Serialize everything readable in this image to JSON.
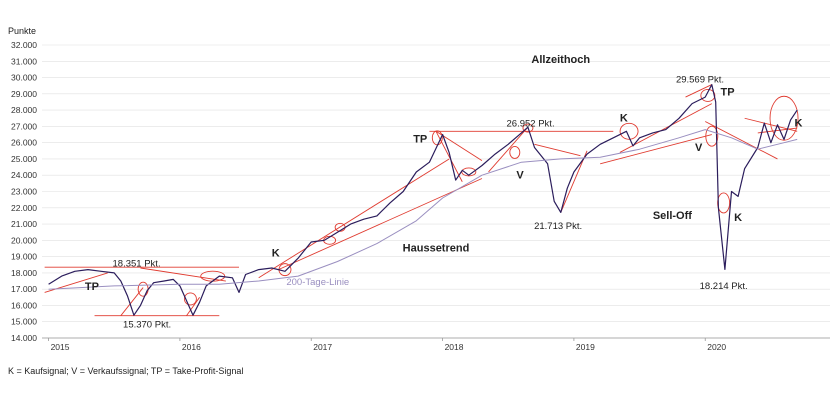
{
  "chart_data": {
    "type": "line",
    "ylabel": "Punkte",
    "ylim": [
      14000,
      32000
    ],
    "y_ticks": [
      14000,
      15000,
      16000,
      17000,
      18000,
      19000,
      20000,
      21000,
      22000,
      23000,
      24000,
      25000,
      26000,
      27000,
      28000,
      29000,
      30000,
      31000,
      32000
    ],
    "y_tick_labels": [
      "14.000",
      "15.000",
      "16.000",
      "17.000",
      "18.000",
      "19.000",
      "20.000",
      "21.000",
      "22.000",
      "23.000",
      "24.000",
      "25.000",
      "26.000",
      "27.000",
      "28.000",
      "29.000",
      "30.000",
      "31.000",
      "32.000"
    ],
    "x_range": [
      2014.95,
      2020.95
    ],
    "x_ticks": [
      2015,
      2016,
      2017,
      2018,
      2019,
      2020
    ],
    "x_tick_labels": [
      "2015",
      "2016",
      "2017",
      "2018",
      "2019",
      "2020"
    ],
    "grid": true,
    "series": [
      {
        "color": "#2b1d5c",
        "x": [
          2015.0,
          2015.1,
          2015.2,
          2015.3,
          2015.4,
          2015.5,
          2015.55,
          2015.6,
          2015.65,
          2015.7,
          2015.75,
          2015.8,
          2015.88,
          2015.95,
          2016.0,
          2016.05,
          2016.1,
          2016.15,
          2016.2,
          2016.3,
          2016.4,
          2016.45,
          2016.5,
          2016.6,
          2016.7,
          2016.8,
          2016.9,
          2017.0,
          2017.1,
          2017.2,
          2017.3,
          2017.4,
          2017.5,
          2017.6,
          2017.7,
          2017.8,
          2017.9,
          2018.0,
          2018.05,
          2018.1,
          2018.15,
          2018.2,
          2018.3,
          2018.4,
          2018.5,
          2018.6,
          2018.65,
          2018.7,
          2018.8,
          2018.85,
          2018.9,
          2018.95,
          2019.0,
          2019.1,
          2019.2,
          2019.3,
          2019.4,
          2019.45,
          2019.5,
          2019.6,
          2019.7,
          2019.8,
          2019.9,
          2020.0,
          2020.05,
          2020.08,
          2020.1,
          2020.15,
          2020.2,
          2020.25,
          2020.3,
          2020.4,
          2020.45,
          2020.5,
          2020.55,
          2020.6,
          2020.65,
          2020.7
        ],
        "y": [
          17300,
          17800,
          18100,
          18200,
          18100,
          18000,
          17500,
          16600,
          15400,
          16000,
          16900,
          17400,
          17500,
          17600,
          17200,
          16300,
          15400,
          16200,
          17200,
          17800,
          17700,
          16800,
          17900,
          18200,
          18300,
          18100,
          18900,
          19900,
          20000,
          20500,
          21000,
          21300,
          21500,
          22300,
          23000,
          24200,
          24800,
          26500,
          25400,
          23700,
          24300,
          24000,
          24600,
          25300,
          25900,
          26600,
          26952,
          25700,
          24700,
          22400,
          21713,
          23200,
          24200,
          25300,
          25900,
          26300,
          26700,
          25800,
          26300,
          26600,
          26800,
          27500,
          28400,
          28800,
          29569,
          28500,
          22000,
          18214,
          23000,
          22700,
          24400,
          25700,
          27200,
          26000,
          27100,
          26200,
          27400,
          28000
        ]
      },
      {
        "name": "200-Tage-Linie",
        "color": "#9a8fc0",
        "x": [
          2015.0,
          2015.5,
          2016.0,
          2016.3,
          2016.6,
          2016.9,
          2017.2,
          2017.5,
          2017.8,
          2018.0,
          2018.3,
          2018.6,
          2018.9,
          2019.2,
          2019.5,
          2019.8,
          2020.0,
          2020.2,
          2020.4,
          2020.6,
          2020.7
        ],
        "y": [
          17000,
          17200,
          17300,
          17300,
          17500,
          17800,
          18700,
          19800,
          21200,
          22600,
          24000,
          24800,
          25000,
          25100,
          25600,
          26300,
          26800,
          26300,
          25600,
          26000,
          26200
        ]
      }
    ],
    "annotations": [
      {
        "text": "Allzeithoch",
        "bold": true,
        "x": 2018.9,
        "y": 30900
      },
      {
        "text": "29.569 Pkt.",
        "bold": false,
        "x": 2019.96,
        "y": 29700
      },
      {
        "text": "26.952 Pkt.",
        "bold": false,
        "x": 2018.67,
        "y": 27000
      },
      {
        "text": "21.713 Pkt.",
        "bold": false,
        "x": 2018.88,
        "y": 20700
      },
      {
        "text": "18.214 Pkt.",
        "bold": false,
        "x": 2020.14,
        "y": 17000
      },
      {
        "text": "18.351 Pkt.",
        "bold": false,
        "x": 2015.67,
        "y": 18400
      },
      {
        "text": "15.370 Pkt.",
        "bold": false,
        "x": 2015.75,
        "y": 14650
      },
      {
        "text": "Haussetrend",
        "bold": true,
        "x": 2017.95,
        "y": 19300
      },
      {
        "text": "Sell-Off",
        "bold": true,
        "x": 2019.75,
        "y": 21300
      },
      {
        "text": "200-Tage-Linie",
        "bold": false,
        "x": 2017.05,
        "y": 17250
      },
      {
        "text": "TP",
        "bold": true,
        "x": 2015.33,
        "y": 16950
      },
      {
        "text": "TP",
        "bold": true,
        "x": 2017.83,
        "y": 26000
      },
      {
        "text": "TP",
        "bold": true,
        "x": 2020.17,
        "y": 28900
      },
      {
        "text": "K",
        "bold": true,
        "x": 2016.73,
        "y": 19000
      },
      {
        "text": "K",
        "bold": true,
        "x": 2019.38,
        "y": 27300
      },
      {
        "text": "K",
        "bold": true,
        "x": 2020.25,
        "y": 21200
      },
      {
        "text": "K",
        "bold": true,
        "x": 2020.71,
        "y": 27000
      },
      {
        "text": "V",
        "bold": true,
        "x": 2018.59,
        "y": 23800
      },
      {
        "text": "V",
        "bold": true,
        "x": 2019.95,
        "y": 25500
      }
    ]
  },
  "footnote": "K = Kaufsignal; V = Verkaufssignal; TP = Take-Profit-Signal",
  "colors": {
    "price_line": "#2b1d5c",
    "ma_line": "#9a8fc0",
    "signal_lines": "#e03c31",
    "grid": "#e0e0e0"
  }
}
